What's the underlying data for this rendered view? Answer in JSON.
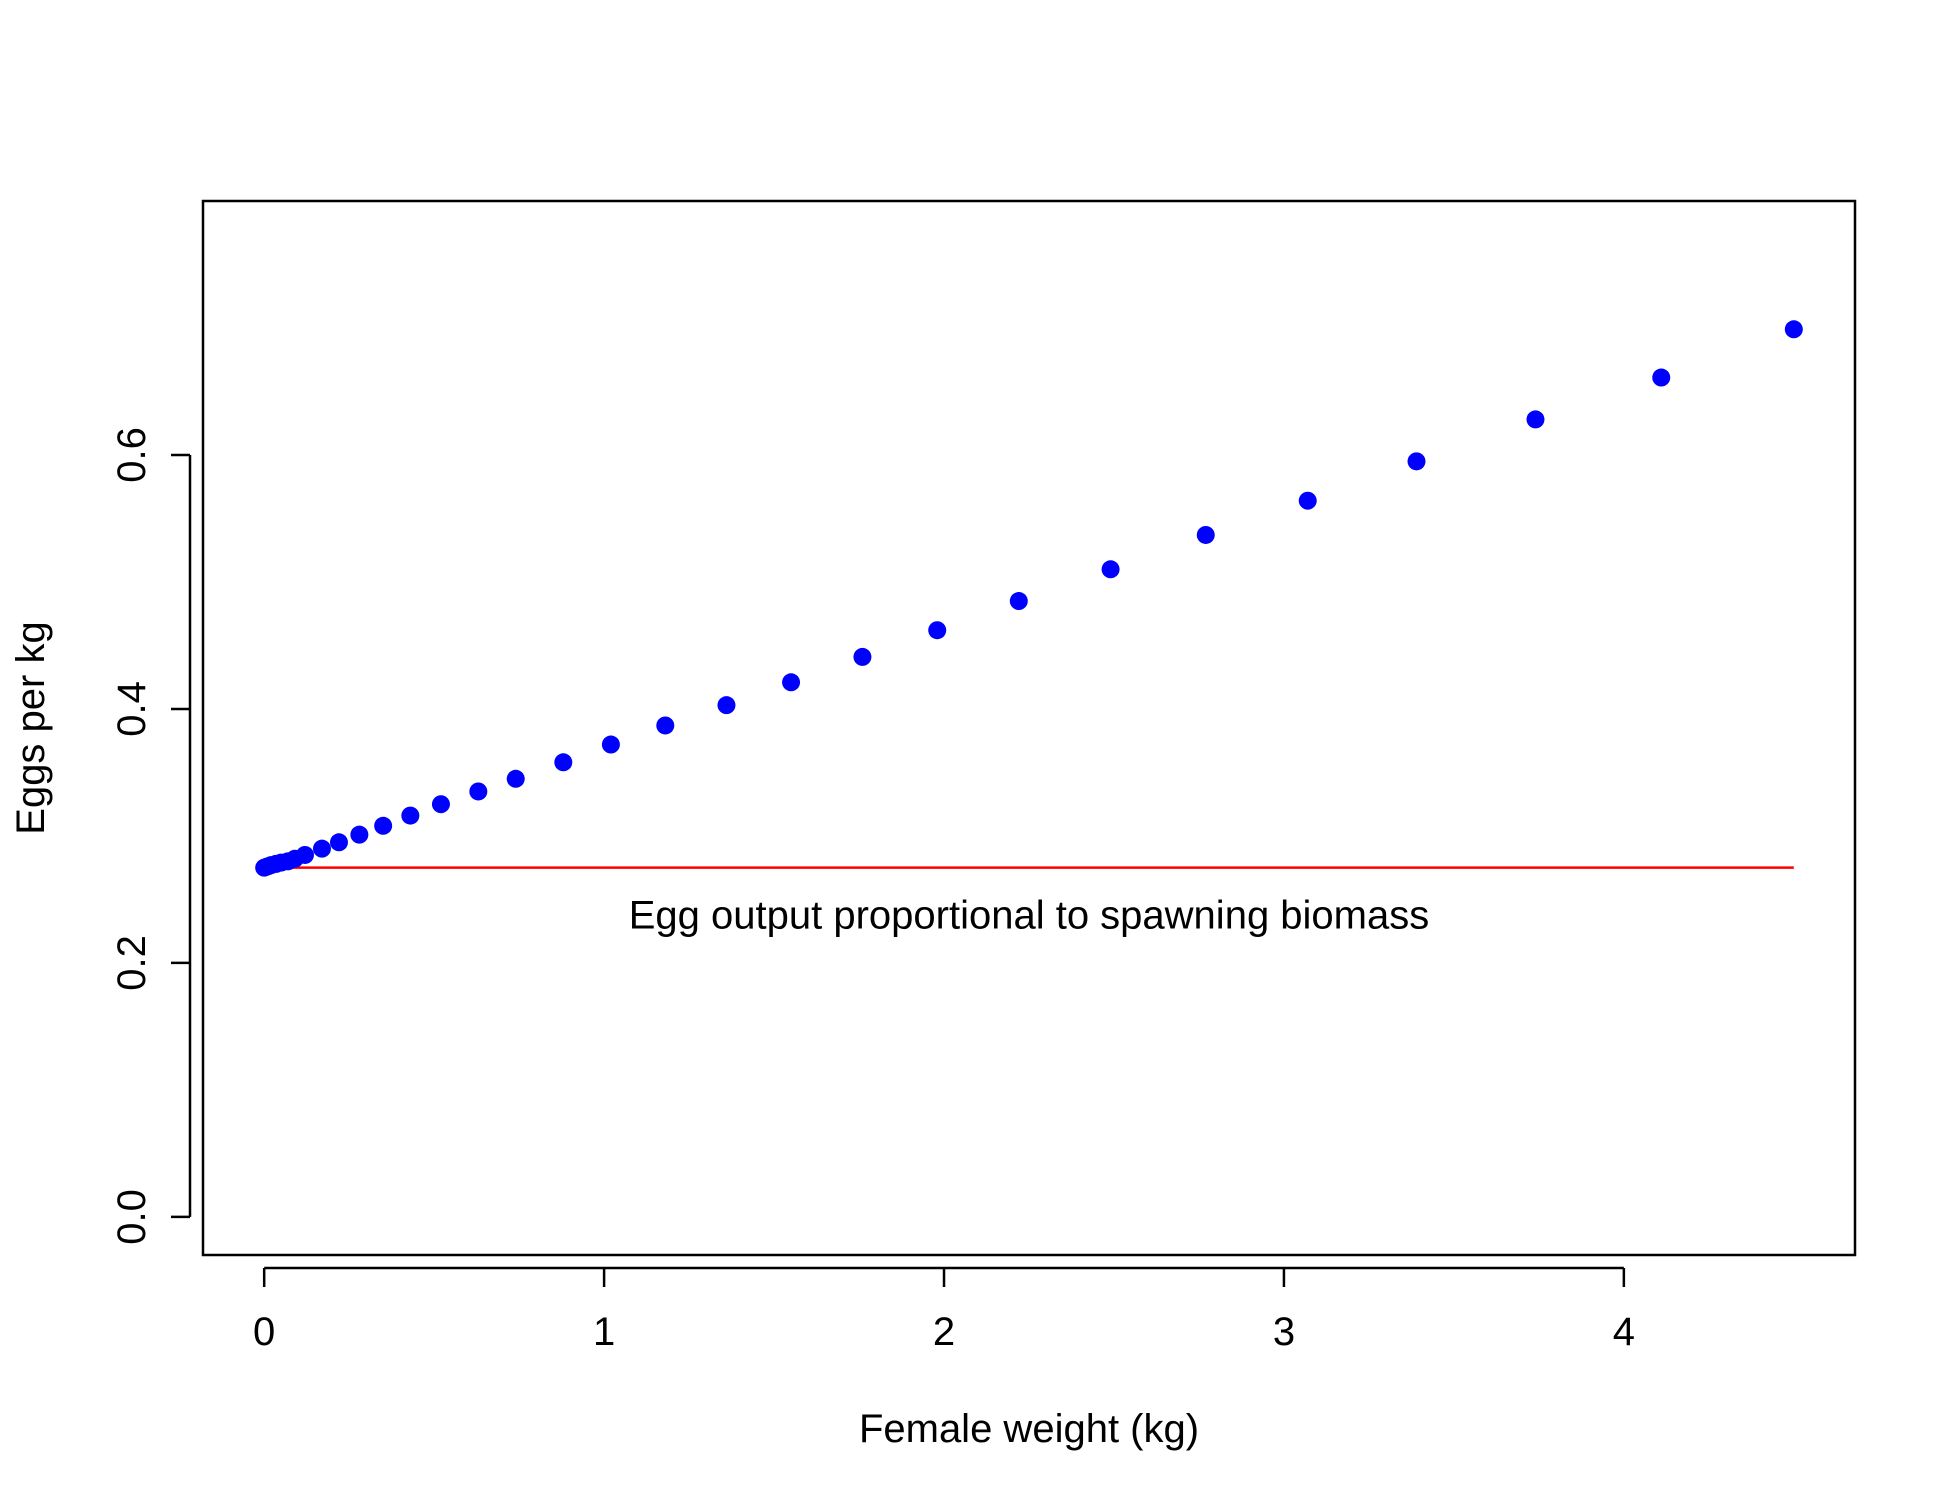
{
  "chart_data": {
    "type": "scatter",
    "title": "",
    "xlabel": "Female weight (kg)",
    "ylabel": "Eggs per kg",
    "xlim": [
      -0.18,
      4.68
    ],
    "ylim": [
      -0.03,
      0.8
    ],
    "x_ticks": [
      0,
      1,
      2,
      3,
      4
    ],
    "x_tick_labels": [
      "0",
      "1",
      "2",
      "3",
      "4"
    ],
    "y_ticks": [
      0.0,
      0.2,
      0.4,
      0.6
    ],
    "y_tick_labels": [
      "0.0",
      "0.2",
      "0.4",
      "0.6"
    ],
    "grid": false,
    "legend": "none",
    "series": [
      {
        "type": "points",
        "color": "#0000ff",
        "x": [
          0.0,
          0.01,
          0.02,
          0.035,
          0.05,
          0.07,
          0.09,
          0.12,
          0.17,
          0.22,
          0.28,
          0.35,
          0.43,
          0.52,
          0.63,
          0.74,
          0.88,
          1.02,
          1.18,
          1.36,
          1.55,
          1.76,
          1.98,
          2.22,
          2.49,
          2.77,
          3.07,
          3.39,
          3.74,
          4.11,
          4.5
        ],
        "y": [
          0.275,
          0.276,
          0.277,
          0.278,
          0.279,
          0.28,
          0.282,
          0.285,
          0.29,
          0.295,
          0.301,
          0.308,
          0.316,
          0.325,
          0.335,
          0.345,
          0.358,
          0.372,
          0.387,
          0.403,
          0.421,
          0.441,
          0.462,
          0.485,
          0.51,
          0.537,
          0.564,
          0.595,
          0.628,
          0.661,
          0.699
        ]
      },
      {
        "type": "line",
        "color": "#ff0000",
        "x": [
          0.0,
          4.5
        ],
        "y": [
          0.275,
          0.275
        ]
      }
    ],
    "annotations": [
      {
        "text": "Egg output proportional to spawning biomass",
        "x": 2.25,
        "y": 0.238
      }
    ]
  }
}
